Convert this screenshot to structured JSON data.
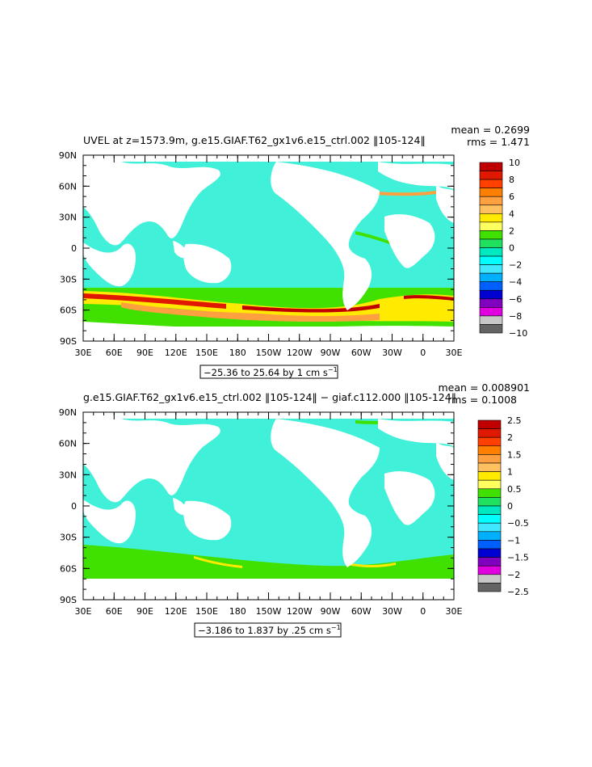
{
  "panels": [
    {
      "title": "UVEL at z=1573.9m, g.e15.GIAF.T62_gx1v6.e15_ctrl.002 ‖105-124‖",
      "mean_text": "mean = 0.2699",
      "rms_text": "rms = 1.471",
      "range_text": "−25.36 to 25.64 by 1 cm s",
      "range_exponent": "−1",
      "colorbar": {
        "labels": [
          "10",
          "8",
          "6",
          "4",
          "2",
          "0",
          "−2",
          "−4",
          "−6",
          "−8",
          "−10"
        ],
        "colors": [
          "#c00000",
          "#e01800",
          "#ff4000",
          "#ff7f00",
          "#ffa040",
          "#ffc060",
          "#ffea00",
          "#ffff60",
          "#40e000",
          "#20e060",
          "#00e8c0",
          "#00ffff",
          "#40e8ff",
          "#00b0ff",
          "#0060ff",
          "#0000d0",
          "#8000c0",
          "#e000e0",
          "#c8c8c8",
          "#646464"
        ]
      }
    },
    {
      "title": "g.e15.GIAF.T62_gx1v6.e15_ctrl.002 ‖105-124‖ − giaf.c112.000 ‖105-124‖",
      "mean_text": "mean = 0.008901",
      "rms_text": "rms = 0.1008",
      "range_text": "−3.186 to 1.837 by .25 cm s",
      "range_exponent": "−1",
      "colorbar": {
        "labels": [
          "2.5",
          "2",
          "1.5",
          "1",
          "0.5",
          "0",
          "−0.5",
          "−1",
          "−1.5",
          "−2",
          "−2.5"
        ],
        "colors": [
          "#c00000",
          "#e01800",
          "#ff4000",
          "#ff7f00",
          "#ffa040",
          "#ffc060",
          "#ffea00",
          "#ffff60",
          "#40e000",
          "#20e060",
          "#00e8c0",
          "#00ffff",
          "#40e8ff",
          "#00b0ff",
          "#0060ff",
          "#0000d0",
          "#8000c0",
          "#e000e0",
          "#c8c8c8",
          "#646464"
        ]
      }
    }
  ],
  "lat_labels": [
    "90N",
    "60N",
    "30N",
    "0",
    "30S",
    "60S",
    "90S"
  ],
  "lon_labels": [
    "30E",
    "60E",
    "90E",
    "120E",
    "150E",
    "180",
    "150W",
    "120W",
    "90W",
    "60W",
    "30W",
    "0",
    "30E"
  ],
  "ocean_color": "#40f0d8",
  "land_color": "#ffffff"
}
